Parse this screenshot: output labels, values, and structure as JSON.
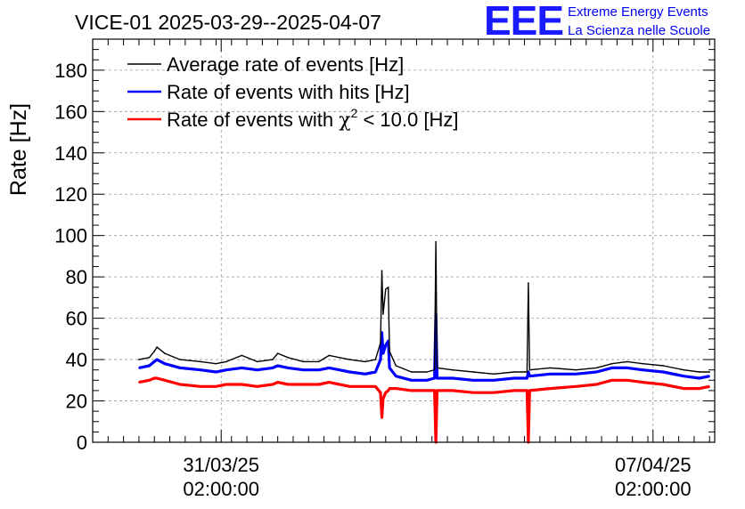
{
  "logo": {
    "letters": "EEE",
    "line1": "Extreme Energy Events",
    "line2": "La Scienza nelle Scuole"
  },
  "chart_data": {
    "type": "line",
    "title": "VICE-01 2025-03-29--2025-04-07",
    "ylabel": "Rate [Hz]",
    "xlabel": "",
    "ylim": [
      0,
      195
    ],
    "yticks": [
      0,
      20,
      40,
      60,
      80,
      100,
      120,
      140,
      160,
      180
    ],
    "xlim": [
      "2025-03-29T00:00",
      "2025-04-08T02:00"
    ],
    "xticks": [
      {
        "x": "2025-03-31T02:00",
        "line1": "31/03/25",
        "line2": "02:00:00"
      },
      {
        "x": "2025-04-07T02:00",
        "line1": "07/04/25",
        "line2": "02:00:00"
      }
    ],
    "grid": true,
    "legend": {
      "position": "top-left",
      "entries": [
        {
          "label": "Average rate of events [Hz]",
          "color": "#000000"
        },
        {
          "label": "Rate of events with hits [Hz]",
          "color": "#0000ff"
        },
        {
          "label_pre": "Rate of events with ",
          "label_chi": "χ",
          "label_sup": "2",
          "label_post": " < 10.0 [Hz]",
          "color": "#ff0000"
        }
      ]
    },
    "series": [
      {
        "name": "Average rate of events [Hz]",
        "color": "#000000",
        "points": [
          [
            "2025-03-29T18:00",
            40
          ],
          [
            "2025-03-29T22:00",
            41
          ],
          [
            "2025-03-30T00:00",
            44
          ],
          [
            "2025-03-30T01:00",
            46
          ],
          [
            "2025-03-30T04:00",
            43
          ],
          [
            "2025-03-30T10:00",
            40
          ],
          [
            "2025-03-30T18:00",
            39
          ],
          [
            "2025-03-31T00:00",
            38
          ],
          [
            "2025-03-31T04:00",
            39
          ],
          [
            "2025-03-31T10:00",
            42
          ],
          [
            "2025-03-31T16:00",
            39
          ],
          [
            "2025-03-31T22:00",
            40
          ],
          [
            "2025-04-01T00:00",
            43
          ],
          [
            "2025-04-01T04:00",
            41
          ],
          [
            "2025-04-01T10:00",
            39
          ],
          [
            "2025-04-01T16:00",
            39
          ],
          [
            "2025-04-01T20:00",
            42
          ],
          [
            "2025-04-02T00:00",
            41
          ],
          [
            "2025-04-02T04:00",
            40
          ],
          [
            "2025-04-02T10:00",
            39
          ],
          [
            "2025-04-02T14:00",
            40
          ],
          [
            "2025-04-02T16:00",
            48
          ],
          [
            "2025-04-02T16:30",
            83
          ],
          [
            "2025-04-02T17:00",
            62
          ],
          [
            "2025-04-02T18:00",
            74
          ],
          [
            "2025-04-02T19:00",
            75
          ],
          [
            "2025-04-02T19:30",
            44
          ],
          [
            "2025-04-02T22:00",
            37
          ],
          [
            "2025-04-03T04:00",
            34
          ],
          [
            "2025-04-03T10:00",
            34
          ],
          [
            "2025-04-03T13:00",
            35
          ],
          [
            "2025-04-03T13:30",
            97
          ],
          [
            "2025-04-03T14:00",
            36
          ],
          [
            "2025-04-03T20:00",
            35
          ],
          [
            "2025-04-04T04:00",
            34
          ],
          [
            "2025-04-04T12:00",
            33
          ],
          [
            "2025-04-04T20:00",
            34
          ],
          [
            "2025-04-05T01:00",
            34
          ],
          [
            "2025-04-05T01:30",
            77
          ],
          [
            "2025-04-05T02:00",
            35
          ],
          [
            "2025-04-05T10:00",
            36
          ],
          [
            "2025-04-05T20:00",
            35
          ],
          [
            "2025-04-06T04:00",
            36
          ],
          [
            "2025-04-06T10:00",
            38
          ],
          [
            "2025-04-06T16:00",
            39
          ],
          [
            "2025-04-06T22:00",
            38
          ],
          [
            "2025-04-07T06:00",
            37
          ],
          [
            "2025-04-07T14:00",
            35
          ],
          [
            "2025-04-07T20:00",
            34
          ],
          [
            "2025-04-08T00:00",
            34
          ]
        ]
      },
      {
        "name": "Rate of events with hits [Hz]",
        "color": "#0000ff",
        "points": [
          [
            "2025-03-29T18:00",
            36
          ],
          [
            "2025-03-29T22:00",
            37
          ],
          [
            "2025-03-30T00:00",
            39
          ],
          [
            "2025-03-30T01:00",
            40
          ],
          [
            "2025-03-30T04:00",
            38
          ],
          [
            "2025-03-30T10:00",
            36
          ],
          [
            "2025-03-30T18:00",
            35
          ],
          [
            "2025-03-31T00:00",
            34
          ],
          [
            "2025-03-31T04:00",
            35
          ],
          [
            "2025-03-31T10:00",
            36
          ],
          [
            "2025-03-31T16:00",
            35
          ],
          [
            "2025-03-31T22:00",
            36
          ],
          [
            "2025-04-01T00:00",
            37
          ],
          [
            "2025-04-01T04:00",
            36
          ],
          [
            "2025-04-01T10:00",
            35
          ],
          [
            "2025-04-01T16:00",
            35
          ],
          [
            "2025-04-01T20:00",
            36
          ],
          [
            "2025-04-02T00:00",
            35
          ],
          [
            "2025-04-02T04:00",
            34
          ],
          [
            "2025-04-02T10:00",
            33
          ],
          [
            "2025-04-02T14:00",
            34
          ],
          [
            "2025-04-02T16:00",
            40
          ],
          [
            "2025-04-02T16:30",
            53
          ],
          [
            "2025-04-02T17:00",
            43
          ],
          [
            "2025-04-02T18:00",
            47
          ],
          [
            "2025-04-02T19:00",
            49
          ],
          [
            "2025-04-02T19:30",
            36
          ],
          [
            "2025-04-02T22:00",
            32
          ],
          [
            "2025-04-03T04:00",
            30
          ],
          [
            "2025-04-03T10:00",
            30
          ],
          [
            "2025-04-03T13:00",
            31
          ],
          [
            "2025-04-03T13:30",
            62
          ],
          [
            "2025-04-03T14:00",
            31
          ],
          [
            "2025-04-03T20:00",
            31
          ],
          [
            "2025-04-04T04:00",
            30
          ],
          [
            "2025-04-04T12:00",
            30
          ],
          [
            "2025-04-04T20:00",
            31
          ],
          [
            "2025-04-05T01:00",
            31
          ],
          [
            "2025-04-05T01:30",
            34
          ],
          [
            "2025-04-05T02:00",
            32
          ],
          [
            "2025-04-05T10:00",
            33
          ],
          [
            "2025-04-05T20:00",
            33
          ],
          [
            "2025-04-06T04:00",
            34
          ],
          [
            "2025-04-06T10:00",
            36
          ],
          [
            "2025-04-06T16:00",
            36
          ],
          [
            "2025-04-06T22:00",
            35
          ],
          [
            "2025-04-07T06:00",
            34
          ],
          [
            "2025-04-07T14:00",
            32
          ],
          [
            "2025-04-07T20:00",
            31
          ],
          [
            "2025-04-08T00:00",
            32
          ]
        ]
      },
      {
        "name": "Rate of events with χ2 < 10.0 [Hz]",
        "color": "#ff0000",
        "points": [
          [
            "2025-03-29T18:00",
            29
          ],
          [
            "2025-03-29T22:00",
            30
          ],
          [
            "2025-03-30T00:00",
            31
          ],
          [
            "2025-03-30T01:00",
            31
          ],
          [
            "2025-03-30T04:00",
            30
          ],
          [
            "2025-03-30T10:00",
            28
          ],
          [
            "2025-03-30T18:00",
            27
          ],
          [
            "2025-03-31T00:00",
            27
          ],
          [
            "2025-03-31T04:00",
            28
          ],
          [
            "2025-03-31T10:00",
            28
          ],
          [
            "2025-03-31T16:00",
            27
          ],
          [
            "2025-03-31T22:00",
            28
          ],
          [
            "2025-04-01T00:00",
            29
          ],
          [
            "2025-04-01T04:00",
            28
          ],
          [
            "2025-04-01T10:00",
            28
          ],
          [
            "2025-04-01T16:00",
            28
          ],
          [
            "2025-04-01T20:00",
            29
          ],
          [
            "2025-04-02T00:00",
            28
          ],
          [
            "2025-04-02T04:00",
            27
          ],
          [
            "2025-04-02T10:00",
            27
          ],
          [
            "2025-04-02T14:00",
            27
          ],
          [
            "2025-04-02T16:00",
            24
          ],
          [
            "2025-04-02T16:30",
            12
          ],
          [
            "2025-04-02T17:00",
            21
          ],
          [
            "2025-04-02T18:00",
            24
          ],
          [
            "2025-04-02T19:00",
            25
          ],
          [
            "2025-04-02T19:30",
            26
          ],
          [
            "2025-04-02T22:00",
            26
          ],
          [
            "2025-04-03T04:00",
            25
          ],
          [
            "2025-04-03T10:00",
            25
          ],
          [
            "2025-04-03T13:00",
            25
          ],
          [
            "2025-04-03T13:30",
            0
          ],
          [
            "2025-04-03T14:00",
            25
          ],
          [
            "2025-04-03T20:00",
            25
          ],
          [
            "2025-04-04T04:00",
            24
          ],
          [
            "2025-04-04T12:00",
            24
          ],
          [
            "2025-04-04T20:00",
            25
          ],
          [
            "2025-04-05T01:00",
            25
          ],
          [
            "2025-04-05T01:30",
            0
          ],
          [
            "2025-04-05T02:00",
            25
          ],
          [
            "2025-04-05T10:00",
            26
          ],
          [
            "2025-04-05T20:00",
            27
          ],
          [
            "2025-04-06T04:00",
            28
          ],
          [
            "2025-04-06T10:00",
            30
          ],
          [
            "2025-04-06T16:00",
            30
          ],
          [
            "2025-04-06T22:00",
            29
          ],
          [
            "2025-04-07T06:00",
            28
          ],
          [
            "2025-04-07T14:00",
            26
          ],
          [
            "2025-04-07T20:00",
            26
          ],
          [
            "2025-04-08T00:00",
            27
          ]
        ]
      }
    ]
  }
}
